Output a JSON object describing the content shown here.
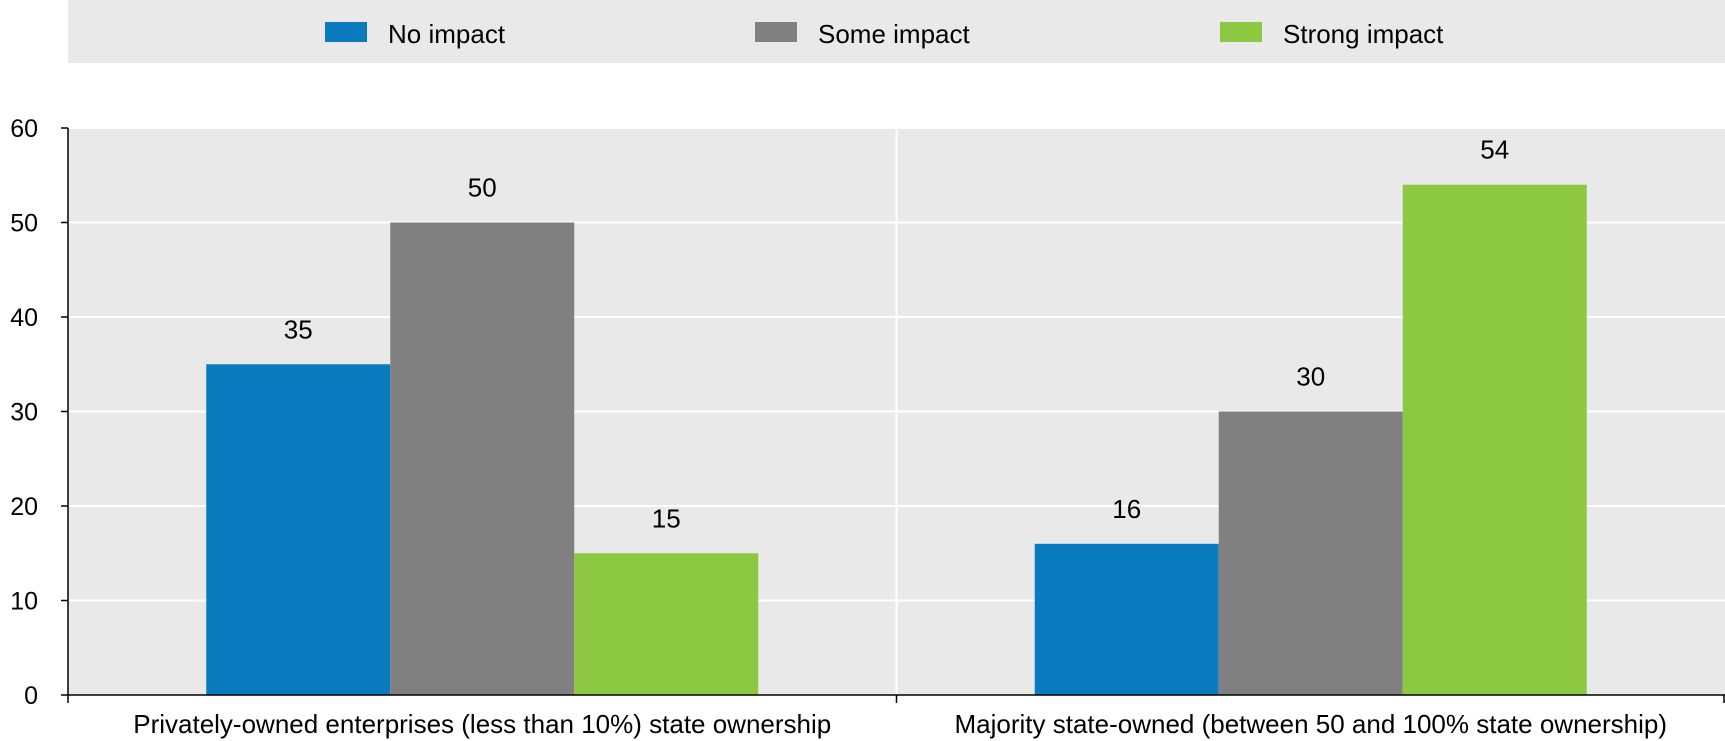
{
  "chart_data": {
    "type": "bar",
    "categories": [
      "Privately-owned enterprises (less than 10%) state ownership",
      "Majority state-owned (between 50 and 100% state ownership)"
    ],
    "series": [
      {
        "name": "No impact",
        "values": [
          35,
          16
        ],
        "color": "#0b7bc0"
      },
      {
        "name": "Some impact",
        "values": [
          50,
          30
        ],
        "color": "#808080"
      },
      {
        "name": "Strong impact",
        "values": [
          15,
          54
        ],
        "color": "#8cc841"
      }
    ],
    "ylim": [
      0,
      60
    ],
    "yticks": [
      0,
      10,
      20,
      30,
      40,
      50,
      60
    ],
    "title": "",
    "xlabel": "",
    "ylabel": "",
    "legend_position": "top",
    "grid": true,
    "plot_background": "#e9e9e9"
  }
}
